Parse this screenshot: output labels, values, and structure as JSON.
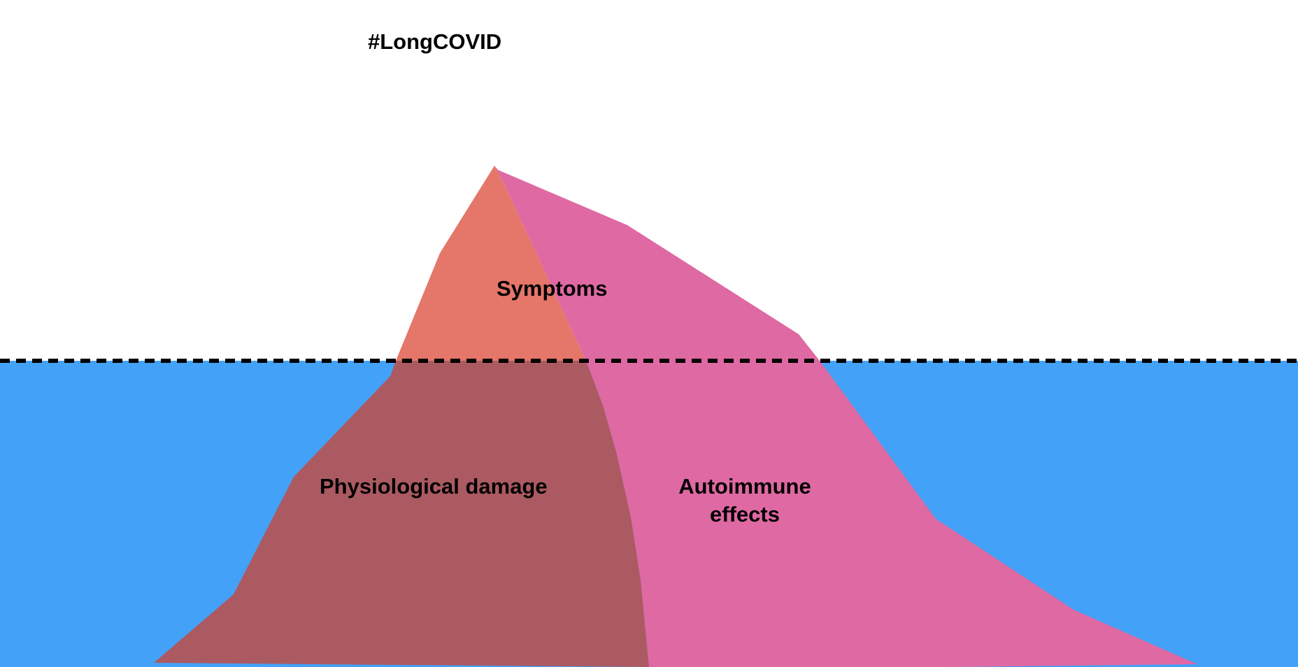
{
  "title": "#LongCOVID",
  "sections": {
    "symptoms": "Symptoms",
    "physiological_damage": "Physiological damage",
    "autoimmune_effects": "Autoimmune effects"
  },
  "colors": {
    "water": "#43a1f7",
    "waterline": "#000000",
    "symptoms_fill": "#e5766a",
    "physiological_fill": "#ac5a62",
    "autoimmune_fill": "#df69a3"
  }
}
